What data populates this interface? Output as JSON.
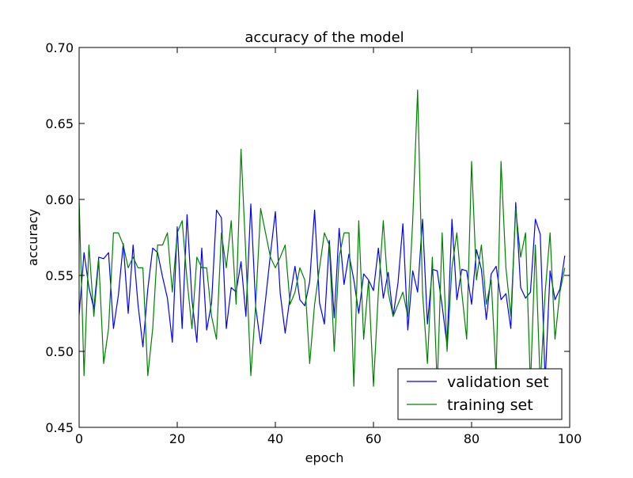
{
  "chart_data": {
    "type": "line",
    "title": "accuracy of the model",
    "xlabel": "epoch",
    "ylabel": "accuracy",
    "xlim": [
      0,
      100
    ],
    "ylim": [
      0.45,
      0.7
    ],
    "xticks": [
      0,
      20,
      40,
      60,
      80,
      100
    ],
    "yticks": [
      0.45,
      0.5,
      0.55,
      0.6,
      0.65,
      0.7
    ],
    "xtick_labels": [
      "0",
      "20",
      "40",
      "60",
      "80",
      "100"
    ],
    "ytick_labels": [
      "0.45",
      "0.50",
      "0.55",
      "0.60",
      "0.65",
      "0.70"
    ],
    "grid": false,
    "legend_position": "lower-right",
    "series": [
      {
        "name": "validation set",
        "color": "#0000ff",
        "x": [
          0,
          1,
          2,
          3,
          4,
          5,
          6,
          7,
          8,
          9,
          10,
          11,
          12,
          13,
          14,
          15,
          16,
          17,
          18,
          19,
          20,
          21,
          22,
          23,
          24,
          25,
          26,
          27,
          28,
          29,
          30,
          31,
          32,
          33,
          34,
          35,
          36,
          37,
          38,
          39,
          40,
          41,
          42,
          43,
          44,
          45,
          46,
          47,
          48,
          49,
          50,
          51,
          52,
          53,
          54,
          55,
          56,
          57,
          58,
          59,
          60,
          61,
          62,
          63,
          64,
          65,
          66,
          67,
          68,
          69,
          70,
          71,
          72,
          73,
          74,
          75,
          76,
          77,
          78,
          79,
          80,
          81,
          82,
          83,
          84,
          85,
          86,
          87,
          88,
          89,
          90,
          91,
          92,
          93,
          94,
          95,
          96,
          97,
          98,
          99
        ],
        "values": [
          0.524,
          0.565,
          0.542,
          0.528,
          0.562,
          0.561,
          0.565,
          0.515,
          0.537,
          0.571,
          0.525,
          0.57,
          0.531,
          0.503,
          0.541,
          0.568,
          0.565,
          0.549,
          0.535,
          0.506,
          0.582,
          0.515,
          0.59,
          0.534,
          0.506,
          0.568,
          0.514,
          0.532,
          0.593,
          0.588,
          0.515,
          0.542,
          0.539,
          0.559,
          0.523,
          0.597,
          0.529,
          0.505,
          0.534,
          0.564,
          0.592,
          0.538,
          0.512,
          0.536,
          0.556,
          0.534,
          0.53,
          0.546,
          0.593,
          0.532,
          0.518,
          0.573,
          0.522,
          0.581,
          0.544,
          0.564,
          0.547,
          0.525,
          0.551,
          0.547,
          0.54,
          0.568,
          0.535,
          0.552,
          0.523,
          0.545,
          0.584,
          0.514,
          0.553,
          0.539,
          0.587,
          0.518,
          0.554,
          0.553,
          0.53,
          0.504,
          0.587,
          0.534,
          0.554,
          0.553,
          0.531,
          0.567,
          0.554,
          0.521,
          0.551,
          0.556,
          0.534,
          0.538,
          0.515,
          0.598,
          0.542,
          0.535,
          0.539,
          0.587,
          0.577,
          0.48,
          0.553,
          0.534,
          0.541,
          0.563
        ]
      },
      {
        "name": "training set",
        "color": "#008000",
        "x": [
          0,
          1,
          2,
          3,
          4,
          5,
          6,
          7,
          8,
          9,
          10,
          11,
          12,
          13,
          14,
          15,
          16,
          17,
          18,
          19,
          20,
          21,
          22,
          23,
          24,
          25,
          26,
          27,
          28,
          29,
          30,
          31,
          32,
          33,
          34,
          35,
          36,
          37,
          38,
          39,
          40,
          41,
          42,
          43,
          44,
          45,
          46,
          47,
          48,
          49,
          50,
          51,
          52,
          53,
          54,
          55,
          56,
          57,
          58,
          59,
          60,
          61,
          62,
          63,
          64,
          65,
          66,
          67,
          68,
          69,
          70,
          71,
          72,
          73,
          74,
          75,
          76,
          77,
          78,
          79,
          80,
          81,
          82,
          83,
          84,
          85,
          86,
          87,
          88,
          89,
          90,
          91,
          92,
          93,
          94,
          95,
          96,
          97,
          98,
          99
        ],
        "values": [
          0.6,
          0.484,
          0.57,
          0.523,
          0.56,
          0.492,
          0.515,
          0.578,
          0.578,
          0.57,
          0.555,
          0.562,
          0.555,
          0.555,
          0.484,
          0.515,
          0.57,
          0.57,
          0.578,
          0.539,
          0.578,
          0.586,
          0.547,
          0.515,
          0.562,
          0.555,
          0.555,
          0.523,
          0.508,
          0.578,
          0.555,
          0.586,
          0.531,
          0.633,
          0.562,
          0.484,
          0.531,
          0.594,
          0.578,
          0.562,
          0.555,
          0.562,
          0.57,
          0.531,
          0.539,
          0.555,
          0.547,
          0.492,
          0.531,
          0.555,
          0.578,
          0.57,
          0.5,
          0.562,
          0.578,
          0.578,
          0.477,
          0.586,
          0.508,
          0.547,
          0.477,
          0.539,
          0.586,
          0.539,
          0.523,
          0.531,
          0.539,
          0.523,
          0.586,
          0.672,
          0.539,
          0.492,
          0.562,
          0.477,
          0.578,
          0.5,
          0.555,
          0.578,
          0.539,
          0.508,
          0.625,
          0.547,
          0.57,
          0.531,
          0.547,
          0.484,
          0.625,
          0.555,
          0.523,
          0.594,
          0.562,
          0.578,
          0.477,
          0.57,
          0.477,
          0.539,
          0.578,
          0.508,
          0.539,
          0.555
        ]
      }
    ]
  }
}
